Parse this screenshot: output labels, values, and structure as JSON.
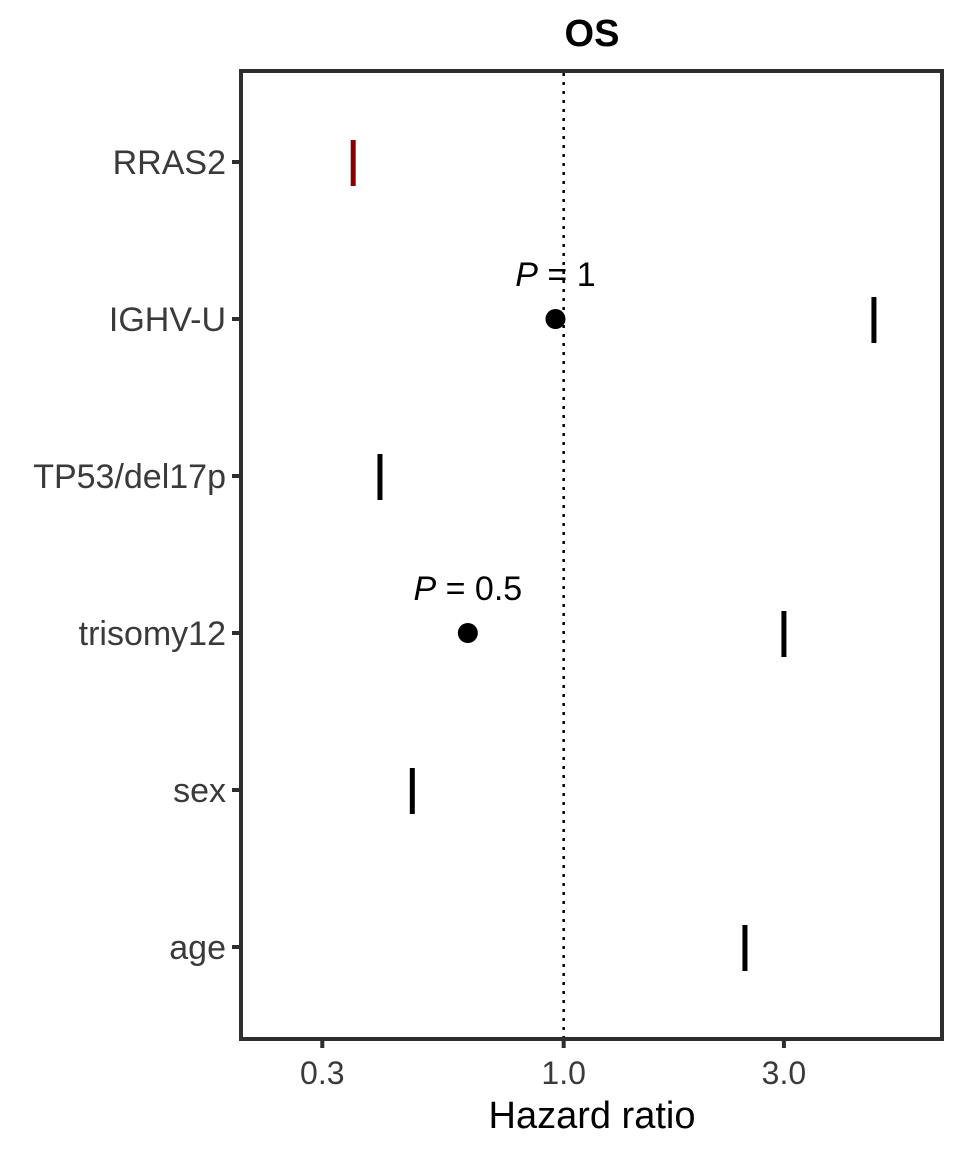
{
  "chart_data": {
    "type": "forest",
    "title": "OS",
    "xlabel": "Hazard ratio",
    "x_scale": "log",
    "xlim": [
      0.2,
      6.6
    ],
    "reference_line": 1.0,
    "xticks": [
      {
        "value": 0.3,
        "label": "0.3"
      },
      {
        "value": 1.0,
        "label": "1.0"
      },
      {
        "value": 3.0,
        "label": "3.0"
      }
    ],
    "rows": [
      {
        "name": "RRAS2",
        "estimate": null,
        "marker": 0.35,
        "p_label": null,
        "color": "#8b0000"
      },
      {
        "name": "IGHV-U",
        "estimate": 0.96,
        "marker": 4.7,
        "p_label": "= 1",
        "color": "#000000"
      },
      {
        "name": "TP53/del17p",
        "estimate": null,
        "marker": 0.4,
        "p_label": null,
        "color": "#000000"
      },
      {
        "name": "trisomy12",
        "estimate": 0.62,
        "marker": 3.0,
        "p_label": "= 0.5",
        "color": "#000000"
      },
      {
        "name": "sex",
        "estimate": null,
        "marker": 0.47,
        "p_label": null,
        "color": "#000000"
      },
      {
        "name": "age",
        "estimate": null,
        "marker": 2.47,
        "p_label": null,
        "color": "#000000"
      }
    ],
    "p_prefix": "P",
    "panel_border_color": "#2e2e2e",
    "grid": false
  }
}
